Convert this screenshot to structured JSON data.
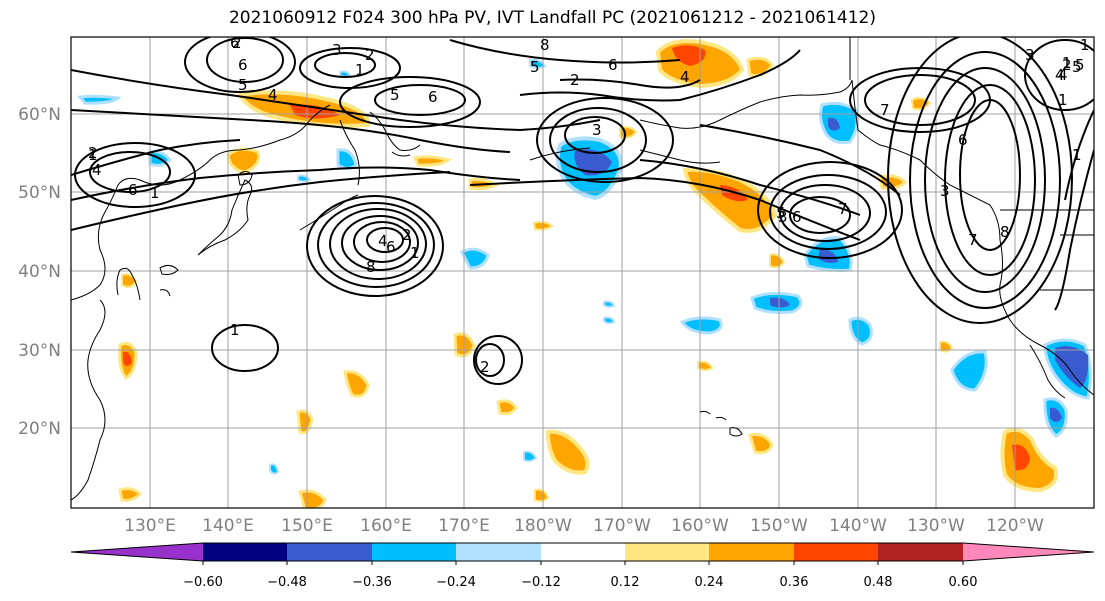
{
  "title": "2021060912 F024 300 hPa PV, IVT Landfall PC (2021061212 - 2021061412)",
  "lat_labels": [
    "60°N",
    "50°N",
    "40°N",
    "30°N",
    "20°N"
  ],
  "lon_labels": [
    "130°E",
    "140°E",
    "150°E",
    "160°E",
    "170°E",
    "180°W",
    "170°W",
    "160°W",
    "150°W",
    "140°W",
    "130°W",
    "120°W"
  ],
  "colorbar": {
    "colors": [
      "#9932cc",
      "#000080",
      "#3a5bd0",
      "#00bfff",
      "#b0e0ff",
      "#ffffff",
      "#ffe680",
      "#ffa500",
      "#ff4500",
      "#b22222",
      "#ff88bb"
    ],
    "tick_labels": [
      "−0.60",
      "−0.48",
      "−0.36",
      "−0.24",
      "−0.12",
      "0.12",
      "0.24",
      "0.36",
      "0.48",
      "0.60"
    ]
  },
  "contour_labels": [
    "3",
    "2",
    "1",
    "6",
    "5",
    "4",
    "6",
    "5",
    "8",
    "5",
    "2",
    "6",
    "4",
    "1",
    "1",
    "2",
    "4",
    "6",
    "3",
    "1",
    "2",
    "4",
    "6",
    "8",
    "1",
    "2",
    "1",
    "7",
    "3",
    "5",
    "6",
    "7",
    "1",
    "2",
    "3",
    "4",
    "5",
    "6",
    "7",
    "8",
    "1",
    "3",
    "1",
    "4",
    "5",
    "6",
    "2"
  ]
}
